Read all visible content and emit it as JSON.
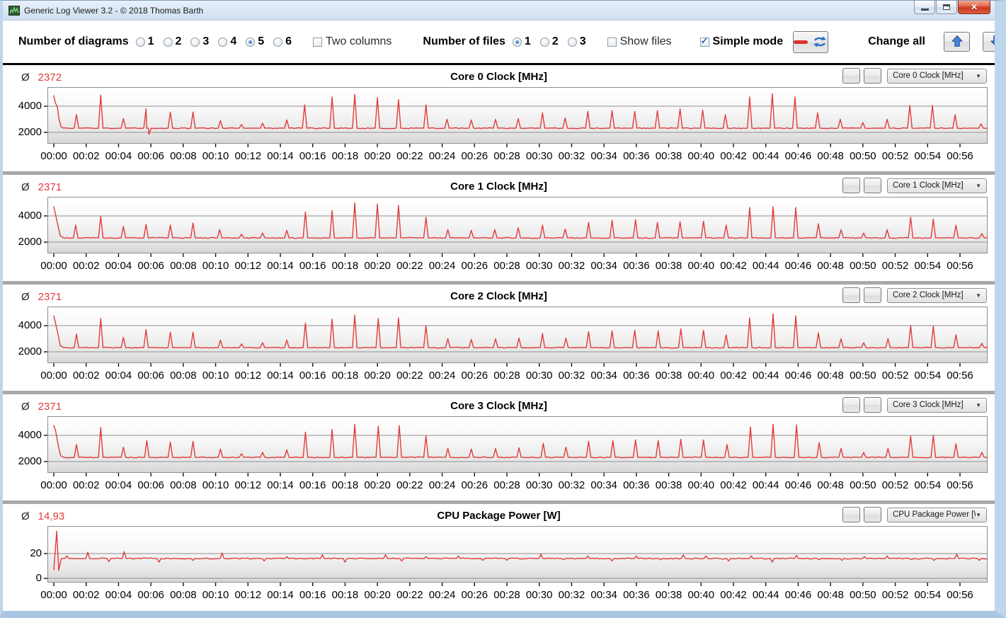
{
  "window": {
    "title": "Generic Log Viewer 3.2 - © 2018 Thomas Barth"
  },
  "toolbar": {
    "diagrams_label": "Number of diagrams",
    "diagrams": {
      "options": [
        "1",
        "2",
        "3",
        "4",
        "5",
        "6"
      ],
      "selected": "5"
    },
    "two_columns": {
      "label": "Two columns",
      "checked": false
    },
    "files_label": "Number of files",
    "files": {
      "options": [
        "1",
        "2",
        "3"
      ],
      "selected": "1"
    },
    "show_files": {
      "label": "Show files",
      "checked": false
    },
    "simple_mode": {
      "label": "Simple mode",
      "checked": true
    },
    "change_all_label": "Change all",
    "accent_red": "#dd2f2f",
    "accent_blue": "#2d6fc4"
  },
  "average_symbol": "Ø",
  "time_axis": {
    "tick_minutes": [
      0,
      2,
      4,
      6,
      8,
      10,
      12,
      14,
      16,
      18,
      20,
      22,
      24,
      26,
      28,
      30,
      32,
      34,
      36,
      38,
      40,
      42,
      44,
      46,
      48,
      50,
      52,
      54,
      56
    ],
    "tick_labels": [
      "00:00",
      "00:02",
      "00:04",
      "00:06",
      "00:08",
      "00:10",
      "00:12",
      "00:14",
      "00:16",
      "00:18",
      "00:20",
      "00:22",
      "00:24",
      "00:26",
      "00:28",
      "00:30",
      "00:32",
      "00:34",
      "00:36",
      "00:38",
      "00:40",
      "00:42",
      "00:44",
      "00:46",
      "00:48",
      "00:50",
      "00:52",
      "00:54",
      "00:56"
    ],
    "xmax_minutes": 58
  },
  "panels": [
    {
      "average": "2372",
      "title": "Core 0 Clock [MHz]",
      "selector_value": "Core 0 Clock [MHz]",
      "chart_data": {
        "type": "line",
        "color": "#e23b3b",
        "ylim": [
          1190,
          5405
        ],
        "yticks": [
          [
            2000,
            "2000"
          ],
          [
            4000,
            "4000"
          ]
        ],
        "baseline": 2320,
        "noise": 35,
        "event_halfwidth": 0.14,
        "start_points": [
          [
            0,
            4800
          ],
          [
            0.1,
            4250
          ],
          [
            0.22,
            3950
          ],
          [
            0.32,
            3000
          ],
          [
            0.45,
            2420
          ],
          [
            0.6,
            2330
          ]
        ],
        "events": [
          [
            1.4,
            3350
          ],
          [
            2.9,
            4850
          ],
          [
            4.3,
            3050
          ],
          [
            5.7,
            3800
          ],
          [
            5.88,
            1850
          ],
          [
            7.2,
            3550
          ],
          [
            8.6,
            3550
          ],
          [
            10.3,
            2900
          ],
          [
            11.6,
            2600
          ],
          [
            12.9,
            2700
          ],
          [
            14.4,
            2950
          ],
          [
            15.5,
            4100
          ],
          [
            17.2,
            4700
          ],
          [
            18.6,
            4900
          ],
          [
            20.0,
            4650
          ],
          [
            21.3,
            4500
          ],
          [
            23.0,
            4100
          ],
          [
            24.3,
            3000
          ],
          [
            25.8,
            2950
          ],
          [
            27.3,
            3000
          ],
          [
            28.7,
            3050
          ],
          [
            30.2,
            3500
          ],
          [
            31.6,
            3100
          ],
          [
            33.0,
            3600
          ],
          [
            34.5,
            3650
          ],
          [
            35.9,
            3600
          ],
          [
            37.3,
            3650
          ],
          [
            38.7,
            3800
          ],
          [
            40.1,
            3700
          ],
          [
            41.5,
            3350
          ],
          [
            43.0,
            4700
          ],
          [
            44.4,
            4950
          ],
          [
            45.8,
            4700
          ],
          [
            47.2,
            3500
          ],
          [
            48.6,
            3000
          ],
          [
            50.0,
            2750
          ],
          [
            51.5,
            3000
          ],
          [
            52.9,
            4050
          ],
          [
            54.3,
            4050
          ],
          [
            55.7,
            3350
          ],
          [
            57.3,
            2650
          ]
        ]
      }
    },
    {
      "average": "2371",
      "title": "Core 1 Clock [MHz]",
      "selector_value": "Core 1 Clock [MHz]",
      "chart_data": {
        "type": "line",
        "color": "#e23b3b",
        "ylim": [
          1190,
          5405
        ],
        "yticks": [
          [
            2000,
            "2000"
          ],
          [
            4000,
            "4000"
          ]
        ],
        "baseline": 2320,
        "noise": 35,
        "event_halfwidth": 0.14,
        "start_points": [
          [
            0,
            4700
          ],
          [
            0.1,
            4150
          ],
          [
            0.25,
            3300
          ],
          [
            0.4,
            2500
          ],
          [
            0.6,
            2330
          ]
        ],
        "events": [
          [
            1.35,
            3300
          ],
          [
            2.9,
            3950
          ],
          [
            4.3,
            3200
          ],
          [
            5.7,
            3350
          ],
          [
            7.2,
            3300
          ],
          [
            8.6,
            3450
          ],
          [
            10.25,
            2950
          ],
          [
            11.6,
            2600
          ],
          [
            12.9,
            2700
          ],
          [
            14.4,
            2900
          ],
          [
            15.55,
            4300
          ],
          [
            17.2,
            4400
          ],
          [
            18.6,
            5000
          ],
          [
            20.0,
            4900
          ],
          [
            21.3,
            4800
          ],
          [
            23.0,
            3900
          ],
          [
            24.35,
            2950
          ],
          [
            25.8,
            2900
          ],
          [
            27.25,
            2950
          ],
          [
            28.7,
            3100
          ],
          [
            30.2,
            3300
          ],
          [
            31.6,
            3000
          ],
          [
            33.05,
            3500
          ],
          [
            34.5,
            3650
          ],
          [
            35.95,
            3700
          ],
          [
            37.3,
            3500
          ],
          [
            38.7,
            3550
          ],
          [
            40.15,
            3600
          ],
          [
            41.55,
            3300
          ],
          [
            43.0,
            4650
          ],
          [
            44.45,
            4700
          ],
          [
            45.85,
            4650
          ],
          [
            47.25,
            3400
          ],
          [
            48.65,
            2950
          ],
          [
            50.05,
            2700
          ],
          [
            51.5,
            2950
          ],
          [
            52.95,
            3900
          ],
          [
            54.35,
            3750
          ],
          [
            55.75,
            3300
          ],
          [
            57.35,
            2650
          ]
        ]
      }
    },
    {
      "average": "2371",
      "title": "Core 2 Clock [MHz]",
      "selector_value": "Core 2 Clock [MHz]",
      "chart_data": {
        "type": "line",
        "color": "#e23b3b",
        "ylim": [
          1190,
          5405
        ],
        "yticks": [
          [
            2000,
            "2000"
          ],
          [
            4000,
            "4000"
          ]
        ],
        "baseline": 2320,
        "noise": 35,
        "event_halfwidth": 0.14,
        "start_points": [
          [
            0,
            4750
          ],
          [
            0.1,
            4200
          ],
          [
            0.25,
            3400
          ],
          [
            0.4,
            2480
          ],
          [
            0.6,
            2330
          ]
        ],
        "events": [
          [
            1.4,
            3350
          ],
          [
            2.9,
            4550
          ],
          [
            4.3,
            3100
          ],
          [
            5.7,
            3700
          ],
          [
            7.2,
            3500
          ],
          [
            8.6,
            3500
          ],
          [
            10.3,
            2900
          ],
          [
            11.6,
            2600
          ],
          [
            12.9,
            2700
          ],
          [
            14.4,
            2900
          ],
          [
            15.55,
            4200
          ],
          [
            17.2,
            4500
          ],
          [
            18.6,
            4800
          ],
          [
            20.05,
            4550
          ],
          [
            21.3,
            4600
          ],
          [
            23.0,
            4000
          ],
          [
            24.35,
            3000
          ],
          [
            25.8,
            2950
          ],
          [
            27.3,
            3000
          ],
          [
            28.75,
            3050
          ],
          [
            30.2,
            3400
          ],
          [
            31.65,
            3050
          ],
          [
            33.05,
            3550
          ],
          [
            34.5,
            3600
          ],
          [
            35.9,
            3650
          ],
          [
            37.35,
            3600
          ],
          [
            38.75,
            3750
          ],
          [
            40.15,
            3650
          ],
          [
            41.55,
            3300
          ],
          [
            43.0,
            4600
          ],
          [
            44.45,
            4900
          ],
          [
            45.85,
            4750
          ],
          [
            47.25,
            3450
          ],
          [
            48.65,
            3000
          ],
          [
            50.05,
            2700
          ],
          [
            51.55,
            3000
          ],
          [
            52.95,
            4000
          ],
          [
            54.35,
            3950
          ],
          [
            55.75,
            3300
          ],
          [
            57.35,
            2650
          ]
        ]
      }
    },
    {
      "average": "2371",
      "title": "Core 3 Clock [MHz]",
      "selector_value": "Core 3 Clock [MHz]",
      "chart_data": {
        "type": "line",
        "color": "#e23b3b",
        "ylim": [
          1190,
          5405
        ],
        "yticks": [
          [
            2000,
            "2000"
          ],
          [
            4000,
            "4000"
          ]
        ],
        "baseline": 2320,
        "noise": 35,
        "event_halfwidth": 0.14,
        "start_points": [
          [
            0,
            4750
          ],
          [
            0.12,
            4300
          ],
          [
            0.28,
            3200
          ],
          [
            0.42,
            2450
          ],
          [
            0.6,
            2330
          ]
        ],
        "events": [
          [
            1.4,
            3300
          ],
          [
            2.9,
            4600
          ],
          [
            4.3,
            3100
          ],
          [
            5.75,
            3600
          ],
          [
            7.2,
            3500
          ],
          [
            8.6,
            3550
          ],
          [
            10.3,
            2950
          ],
          [
            11.6,
            2600
          ],
          [
            12.9,
            2700
          ],
          [
            14.4,
            2900
          ],
          [
            15.55,
            4250
          ],
          [
            17.2,
            4450
          ],
          [
            18.6,
            4850
          ],
          [
            20.05,
            4700
          ],
          [
            21.35,
            4750
          ],
          [
            23.0,
            3950
          ],
          [
            24.35,
            3000
          ],
          [
            25.8,
            2950
          ],
          [
            27.3,
            3000
          ],
          [
            28.75,
            3050
          ],
          [
            30.25,
            3400
          ],
          [
            31.65,
            3100
          ],
          [
            33.05,
            3550
          ],
          [
            34.55,
            3600
          ],
          [
            35.95,
            3650
          ],
          [
            37.35,
            3600
          ],
          [
            38.75,
            3700
          ],
          [
            40.15,
            3650
          ],
          [
            41.6,
            3300
          ],
          [
            43.05,
            4650
          ],
          [
            44.45,
            4850
          ],
          [
            45.9,
            4800
          ],
          [
            47.3,
            3450
          ],
          [
            48.65,
            3000
          ],
          [
            50.05,
            2700
          ],
          [
            51.55,
            3000
          ],
          [
            52.95,
            3950
          ],
          [
            54.35,
            4000
          ],
          [
            55.75,
            3350
          ],
          [
            57.35,
            2700
          ]
        ]
      }
    },
    {
      "average": "14,93",
      "title": "CPU Package Power [W]",
      "selector_value": "CPU Package Power [W]",
      "chart_data": {
        "type": "line",
        "color": "#e23b3b",
        "ylim": [
          -2.9,
          41.7
        ],
        "yticks": [
          [
            0,
            "0"
          ],
          [
            20,
            "20"
          ]
        ],
        "baseline": 16,
        "noise": 0.45,
        "event_halfwidth": 0.12,
        "start_points": [
          [
            0,
            7
          ],
          [
            0.18,
            38
          ],
          [
            0.3,
            6.5
          ],
          [
            0.45,
            15.8
          ],
          [
            0.6,
            16
          ]
        ],
        "events": [
          [
            0.8,
            18
          ],
          [
            2.1,
            21
          ],
          [
            3.4,
            13.5
          ],
          [
            4.35,
            21.5
          ],
          [
            6.5,
            13
          ],
          [
            8.6,
            14.5
          ],
          [
            10.4,
            20.5
          ],
          [
            13.0,
            14
          ],
          [
            14.4,
            17.5
          ],
          [
            16.6,
            19
          ],
          [
            18.0,
            13
          ],
          [
            20.5,
            19
          ],
          [
            21.5,
            14
          ],
          [
            23.0,
            17.5
          ],
          [
            25.0,
            18
          ],
          [
            26.5,
            14.5
          ],
          [
            28.0,
            14.5
          ],
          [
            30.1,
            19.5
          ],
          [
            31.5,
            15
          ],
          [
            33.0,
            18
          ],
          [
            34.5,
            14
          ],
          [
            36.0,
            18
          ],
          [
            37.5,
            15
          ],
          [
            38.9,
            19
          ],
          [
            40.3,
            18
          ],
          [
            41.7,
            14
          ],
          [
            43.1,
            18
          ],
          [
            44.4,
            13
          ],
          [
            45.9,
            18.5
          ],
          [
            47.3,
            15
          ],
          [
            48.7,
            14.5
          ],
          [
            50.1,
            17.5
          ],
          [
            51.5,
            18
          ],
          [
            53.0,
            15
          ],
          [
            54.4,
            14.5
          ],
          [
            55.8,
            19.5
          ],
          [
            57.2,
            14.5
          ]
        ]
      }
    }
  ]
}
